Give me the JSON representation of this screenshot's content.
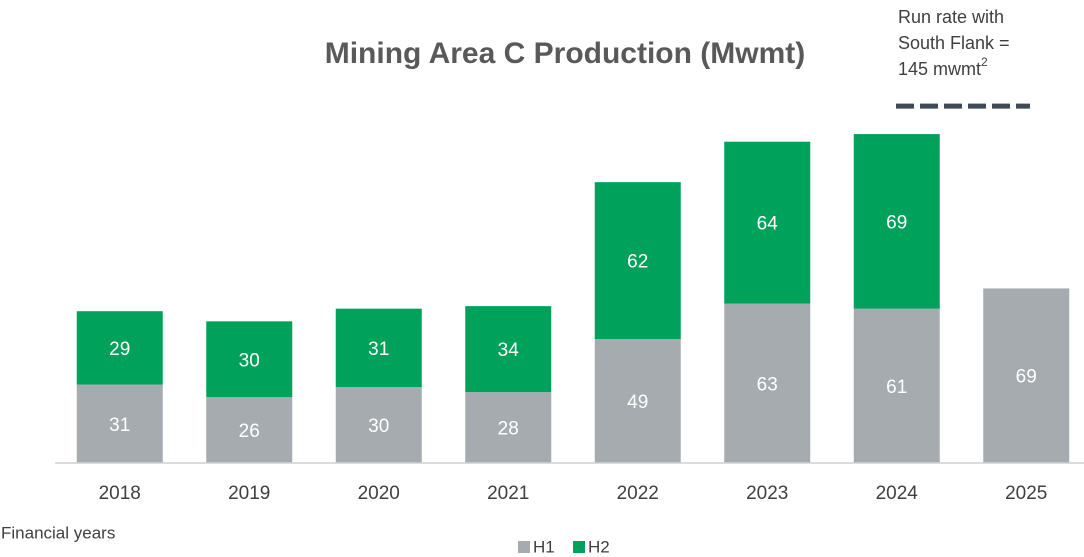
{
  "chart_data": {
    "type": "stacked_bar",
    "title": "Mining Area C Production (Mwmt)",
    "categories": [
      "2018",
      "2019",
      "2020",
      "2021",
      "2022",
      "2023",
      "2024",
      "2025"
    ],
    "series": [
      {
        "name": "H1",
        "color": "#a6abaf",
        "values": [
          31,
          26,
          30,
          28,
          49,
          63,
          61,
          69
        ]
      },
      {
        "name": "H2",
        "color": "#00a15b",
        "values": [
          29,
          30,
          31,
          34,
          62,
          64,
          69,
          null
        ]
      }
    ],
    "ylim": [
      0,
      150
    ],
    "x_label": "Financial years",
    "annotation": {
      "lines": [
        "Run rate with",
        "South Flank =",
        "145 mwmt"
      ],
      "superscript": "2",
      "value": 145
    }
  }
}
